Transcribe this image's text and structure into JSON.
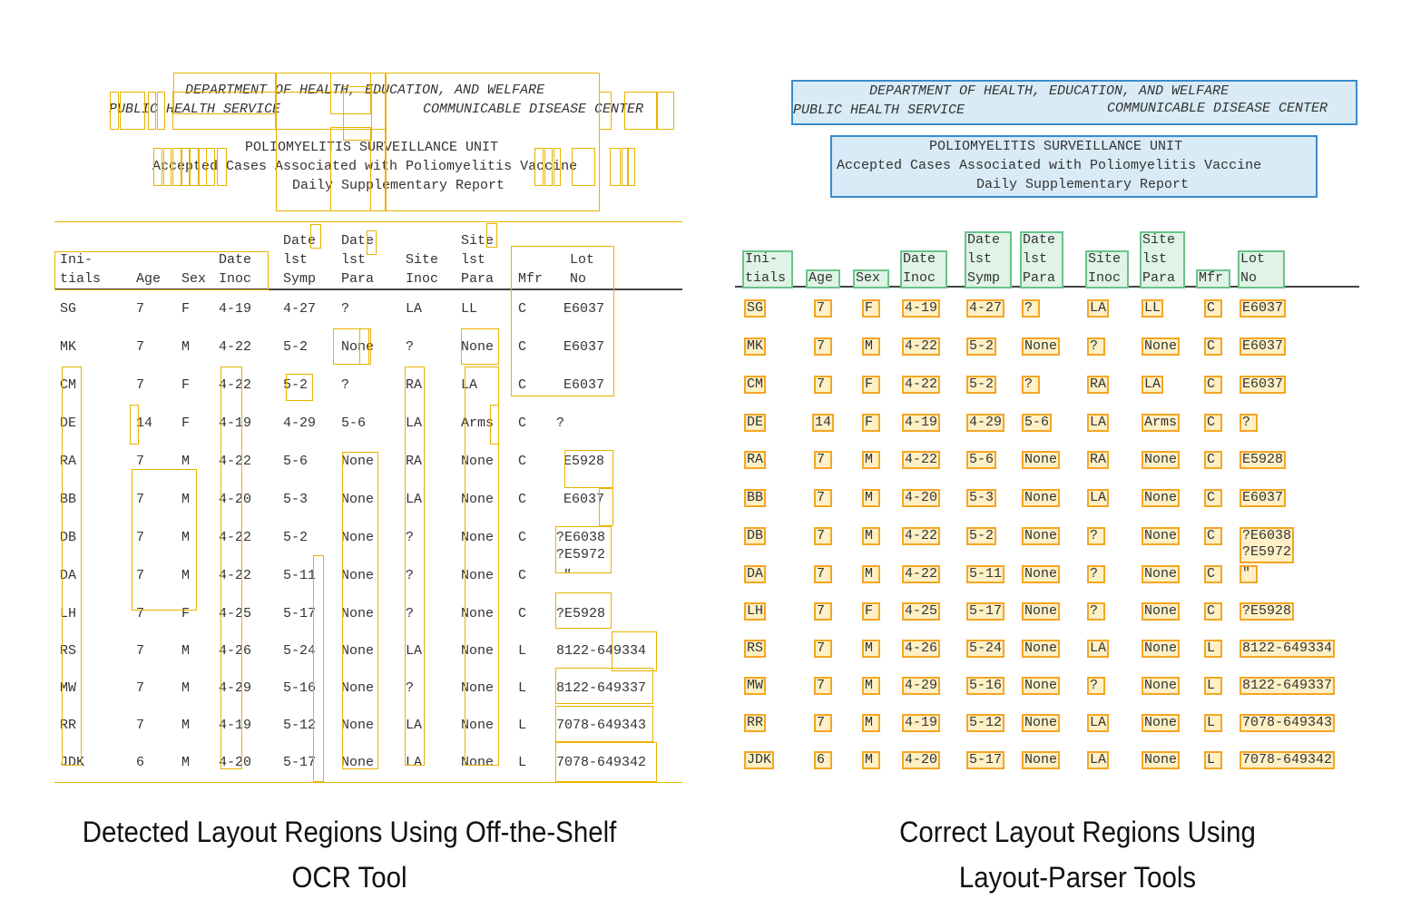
{
  "header": {
    "line1": "DEPARTMENT OF HEALTH, EDUCATION, AND WELFARE",
    "line2_left": "PUBLIC HEALTH SERVICE",
    "line2_right": "COMMUNICABLE DISEASE CENTER",
    "line3": "POLIOMYELITIS SURVEILLANCE UNIT",
    "line4": "Accepted Cases Associated with Poliomyelitis Vaccine",
    "line5": "Daily Supplementary Report"
  },
  "columns": [
    {
      "line1": "",
      "line2": "Ini-",
      "line3": "tials"
    },
    {
      "line1": "",
      "line2": "",
      "line3": "Age"
    },
    {
      "line1": "",
      "line2": "",
      "line3": "Sex"
    },
    {
      "line1": "",
      "line2": "Date",
      "line3": "Inoc"
    },
    {
      "line1": "Date",
      "line2": "lst",
      "line3": "Symp"
    },
    {
      "line1": "Date",
      "line2": "lst",
      "line3": "Para"
    },
    {
      "line1": "",
      "line2": "Site",
      "line3": "Inoc"
    },
    {
      "line1": "Site",
      "line2": "lst",
      "line3": "Para"
    },
    {
      "line1": "",
      "line2": "",
      "line3": "Mfr"
    },
    {
      "line1": "",
      "line2": "Lot",
      "line3": "No"
    }
  ],
  "rows": [
    [
      "SG",
      "7",
      "F",
      "4-19",
      "4-27",
      "?",
      "LA",
      "LL",
      "C",
      "E6037"
    ],
    [
      "MK",
      "7",
      "M",
      "4-22",
      "5-2",
      "None",
      "?",
      "None",
      "C",
      "E6037"
    ],
    [
      "CM",
      "7",
      "F",
      "4-22",
      "5-2",
      "?",
      "RA",
      "LA",
      "C",
      "E6037"
    ],
    [
      "DE",
      "14",
      "F",
      "4-19",
      "4-29",
      "5-6",
      "LA",
      "Arms",
      "C",
      "?"
    ],
    [
      "RA",
      "7",
      "M",
      "4-22",
      "5-6",
      "None",
      "RA",
      "None",
      "C",
      "E5928"
    ],
    [
      "BB",
      "7",
      "M",
      "4-20",
      "5-3",
      "None",
      "LA",
      "None",
      "C",
      "E6037"
    ],
    [
      "DB",
      "7",
      "M",
      "4-22",
      "5-2",
      "None",
      "?",
      "None",
      "C",
      "?E6038"
    ],
    [
      "DA",
      "7",
      "M",
      "4-22",
      "5-11",
      "None",
      "?",
      "None",
      "C",
      "\""
    ],
    [
      "LH",
      "7",
      "F",
      "4-25",
      "5-17",
      "None",
      "?",
      "None",
      "C",
      "?E5928"
    ],
    [
      "RS",
      "7",
      "M",
      "4-26",
      "5-24",
      "None",
      "LA",
      "None",
      "L",
      "8122-649334"
    ],
    [
      "MW",
      "7",
      "M",
      "4-29",
      "5-16",
      "None",
      "?",
      "None",
      "L",
      "8122-649337"
    ],
    [
      "RR",
      "7",
      "M",
      "4-19",
      "5-12",
      "None",
      "LA",
      "None",
      "L",
      "7078-649343"
    ],
    [
      "JDK",
      "6",
      "M",
      "4-20",
      "5-17",
      "None",
      "LA",
      "None",
      "L",
      "7078-649342"
    ]
  ],
  "lot_extra": "?E5972",
  "captions": {
    "left_line1": "Detected Layout Regions Using Off-the-Shelf",
    "left_line2": "OCR Tool",
    "right_line1": "Correct Layout Regions Using",
    "right_line2": "Layout-Parser Tools"
  },
  "colors": {
    "ocr_box": "#e8b300",
    "header_box": "#3a8ccc",
    "column_box": "#6cc28a",
    "cell_box": "#f5a623"
  }
}
